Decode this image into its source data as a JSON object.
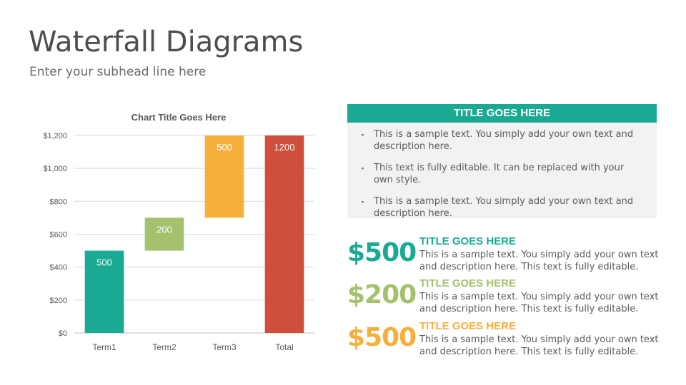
{
  "slide": {
    "title": "Waterfall Diagrams",
    "subtitle": "Enter your subhead line here"
  },
  "chart_data": {
    "type": "bar",
    "subtype": "waterfall",
    "title": "Chart Title Goes Here",
    "categories": [
      "Term1",
      "Term2",
      "Term3",
      "Total"
    ],
    "values": [
      500,
      200,
      500,
      1200
    ],
    "bases": [
      0,
      500,
      700,
      0
    ],
    "data_labels": [
      "500",
      "200",
      "500",
      "1200"
    ],
    "colors": [
      "#1aaa94",
      "#a5c16d",
      "#f5b03b",
      "#cf4f3c"
    ],
    "ylim": [
      0,
      1200
    ],
    "yticks": [
      0,
      200,
      400,
      600,
      800,
      1000,
      1200
    ],
    "ytick_labels": [
      "$0",
      "$200",
      "$400",
      "$600",
      "$800",
      "$1,000",
      "$1,200"
    ],
    "grid": true,
    "legend": false
  },
  "panel": {
    "title": "TITLE GOES HERE",
    "bullet_mark": "▪",
    "bullets": [
      "This is a sample text. You simply add your own text and description here.",
      "This text is fully editable. It can be replaced with your own style.",
      "This is a sample text. You simply add your own text and description here."
    ]
  },
  "stats": [
    {
      "value": "$500",
      "title": "TITLE GOES HERE",
      "desc": "This is a sample text. You simply add your own text and description here. This text is fully editable.",
      "color": "#1aaa94"
    },
    {
      "value": "$200",
      "title": "TITLE GOES HERE",
      "desc": "This is a sample text. You simply add your own text and description here. This text is fully editable.",
      "color": "#a5c16d"
    },
    {
      "value": "$500",
      "title": "TITLE GOES HERE",
      "desc": "This is a sample text. You simply add your own text and description here. This text is fully editable.",
      "color": "#f5b03b"
    }
  ],
  "colors": {
    "panel_header": "#1aaa94",
    "panel_body": "#f2f2f2"
  }
}
